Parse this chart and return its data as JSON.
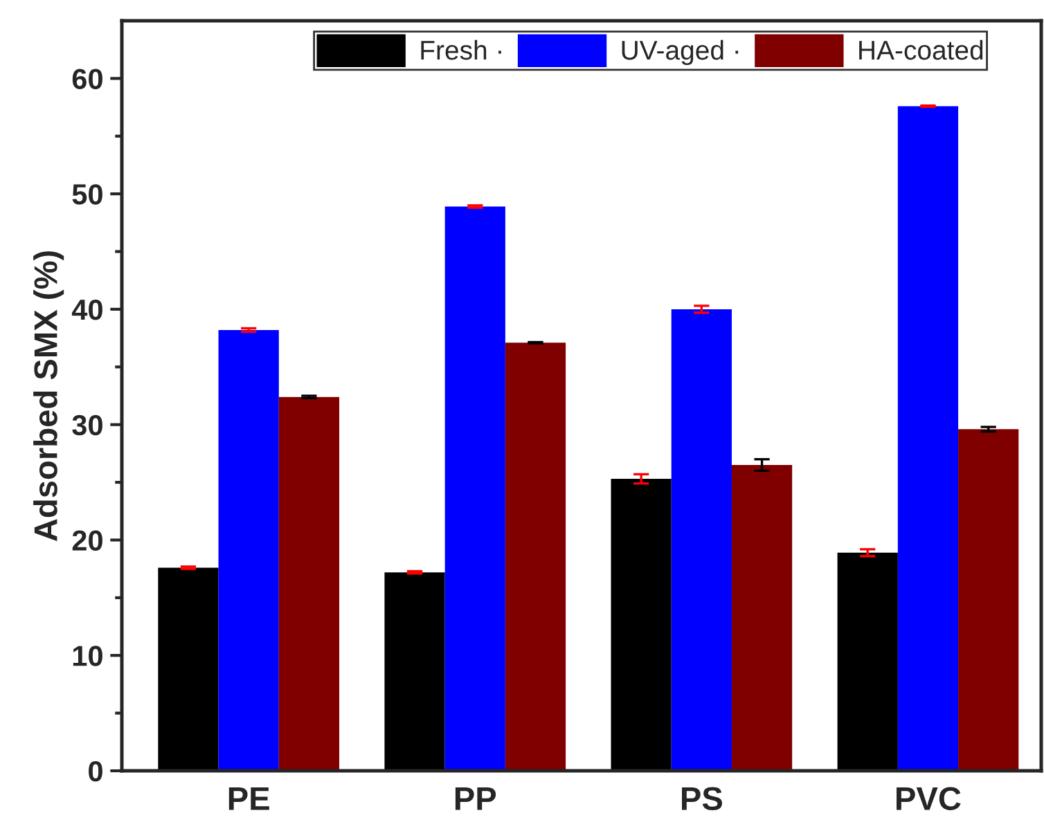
{
  "chart_data": {
    "type": "bar",
    "ylabel": "Adsorbed SMX (%)",
    "categories": [
      "PE",
      "PP",
      "PS",
      "PVC"
    ],
    "series": [
      {
        "name": "Fresh ·",
        "color": "#000000",
        "values": [
          17.6,
          17.2,
          25.3,
          18.9
        ],
        "errors": [
          0.1,
          0.1,
          0.4,
          0.3
        ]
      },
      {
        "name": "UV-aged ·",
        "color": "#0000ff",
        "values": [
          38.2,
          48.9,
          40.0,
          57.6
        ],
        "errors": [
          0.15,
          0.1,
          0.3,
          0.05
        ]
      },
      {
        "name": "HA-coated",
        "color": "#800000",
        "values": [
          32.4,
          37.1,
          26.5,
          29.6
        ],
        "errors": [
          0.1,
          0.05,
          0.5,
          0.2
        ]
      }
    ],
    "ylim": [
      0,
      65
    ],
    "yticks": [
      0,
      10,
      20,
      30,
      40,
      50,
      60
    ],
    "legend": "top",
    "grid": false
  }
}
